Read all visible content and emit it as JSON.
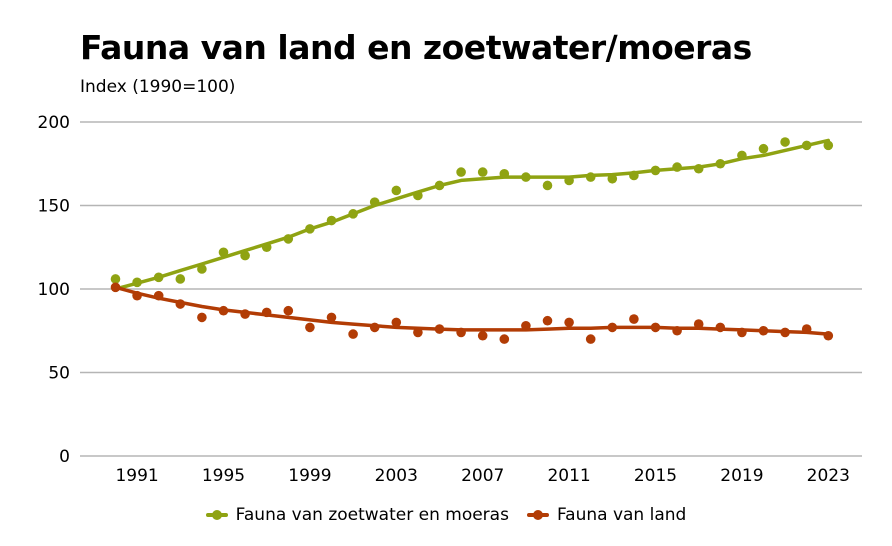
{
  "chart_data": {
    "type": "scatter",
    "title": "Fauna van land en zoetwater/moeras",
    "subtitle": "Index (1990=100)",
    "xlabel": "",
    "ylabel": "",
    "xlim": [
      1990,
      2023
    ],
    "ylim": [
      0,
      200
    ],
    "yticks": [
      "0",
      "50",
      "100",
      "150",
      "200"
    ],
    "xticks": [
      "1991",
      "1995",
      "1999",
      "2003",
      "2007",
      "2011",
      "2015",
      "2019",
      "2023"
    ],
    "grid": true,
    "legend_position": "bottom",
    "x": [
      1990,
      1991,
      1992,
      1993,
      1994,
      1995,
      1996,
      1997,
      1998,
      1999,
      2000,
      2001,
      2002,
      2003,
      2004,
      2005,
      2006,
      2007,
      2008,
      2009,
      2010,
      2011,
      2012,
      2013,
      2014,
      2015,
      2016,
      2017,
      2018,
      2019,
      2020,
      2021,
      2022,
      2023
    ],
    "series": [
      {
        "name": "Fauna van zoetwater en moeras",
        "color": "#8fa312",
        "values": [
          106,
          104,
          107,
          106,
          112,
          122,
          120,
          125,
          130,
          136,
          141,
          145,
          152,
          159,
          156,
          162,
          170,
          170,
          169,
          167,
          162,
          165,
          167,
          166,
          168,
          171,
          173,
          172,
          175,
          180,
          184,
          188,
          186,
          186
        ],
        "trend": [
          100,
          103.5,
          107,
          111,
          115,
          119,
          123,
          127,
          131,
          136,
          140,
          145,
          150,
          154,
          158,
          162,
          165,
          166,
          167,
          167,
          167,
          167,
          168,
          168.5,
          169.5,
          171,
          172,
          173,
          175,
          178,
          180,
          183,
          186,
          189
        ]
      },
      {
        "name": "Fauna van land",
        "color": "#b23c05",
        "values": [
          101,
          96,
          96,
          91,
          83,
          87,
          85,
          86,
          87,
          77,
          83,
          73,
          77,
          80,
          74,
          76,
          74,
          72,
          70,
          78,
          81,
          80,
          70,
          77,
          82,
          77,
          75,
          79,
          77,
          74,
          75,
          74,
          76,
          72
        ],
        "trend": [
          101,
          97.5,
          94.5,
          92,
          89.5,
          87.5,
          86,
          84.5,
          83,
          81.5,
          80,
          79,
          78,
          77,
          76.5,
          76,
          75.5,
          75.5,
          75.5,
          75.5,
          76,
          76.5,
          76.5,
          77,
          77,
          77,
          76.5,
          76.5,
          76,
          75.5,
          75,
          74.5,
          74,
          73
        ]
      }
    ]
  }
}
